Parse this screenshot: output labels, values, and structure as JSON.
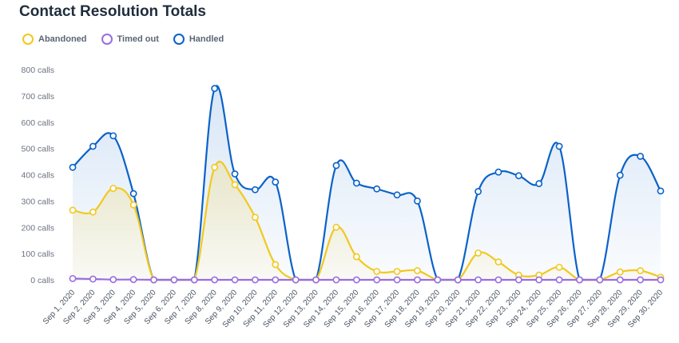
{
  "title": "Contact Resolution Totals",
  "colors": {
    "abandoned": "#f2c81e",
    "timed_out": "#9a6ce0",
    "handled": "#0a62c9"
  },
  "chart_data": {
    "type": "area",
    "title": "Contact Resolution Totals",
    "legend_position": "top-left",
    "grid": false,
    "y_unit": "calls",
    "ylim": [
      0,
      800
    ],
    "y_ticks": [
      "0 calls",
      "100 calls",
      "200 calls",
      "300 calls",
      "400 calls",
      "500 calls",
      "600 calls",
      "700 calls",
      "800 calls"
    ],
    "y_tick_values": [
      0,
      100,
      200,
      300,
      400,
      500,
      600,
      700,
      800
    ],
    "categories": [
      "Sep 1, 2020",
      "Sep 2, 2020",
      "Sep 3, 2020",
      "Sep 4, 2020",
      "Sep 5, 2020",
      "Sep 6, 2020",
      "Sep 7, 2020",
      "Sep 8, 2020",
      "Sep 9, 2020",
      "Sep 10, 2020",
      "Sep 11, 2020",
      "Sep 12, 2020",
      "Sep 13, 2020",
      "Sep 14, 2020",
      "Sep 15, 2020",
      "Sep 16, 2020",
      "Sep 17, 2020",
      "Sep 18, 2020",
      "Sep 19, 2020",
      "Sep 20, 2020",
      "Sep 21, 2020",
      "Sep 22, 2020",
      "Sep 23, 2020",
      "Sep 24, 2020",
      "Sep 25, 2020",
      "Sep 26, 2020",
      "Sep 27, 2020",
      "Sep 28, 2020",
      "Sep 29, 2020",
      "Sep 30, 2020"
    ],
    "series": [
      {
        "name": "Abandoned",
        "key": "abandoned",
        "values": [
          265,
          258,
          348,
          285,
          0,
          0,
          0,
          428,
          362,
          238,
          58,
          0,
          0,
          200,
          88,
          32,
          32,
          35,
          0,
          0,
          102,
          68,
          18,
          18,
          48,
          0,
          0,
          30,
          35,
          10
        ]
      },
      {
        "name": "Timed out",
        "key": "timed_out",
        "values": [
          5,
          3,
          1,
          1,
          0,
          0,
          0,
          0,
          0,
          0,
          0,
          0,
          0,
          0,
          0,
          0,
          0,
          0,
          0,
          0,
          0,
          0,
          0,
          0,
          0,
          0,
          0,
          0,
          0,
          0
        ]
      },
      {
        "name": "Handled",
        "key": "handled",
        "values": [
          428,
          508,
          548,
          328,
          0,
          0,
          0,
          728,
          403,
          343,
          372,
          0,
          0,
          435,
          368,
          346,
          323,
          300,
          0,
          0,
          336,
          410,
          396,
          366,
          508,
          0,
          0,
          398,
          470,
          338
        ]
      }
    ]
  }
}
